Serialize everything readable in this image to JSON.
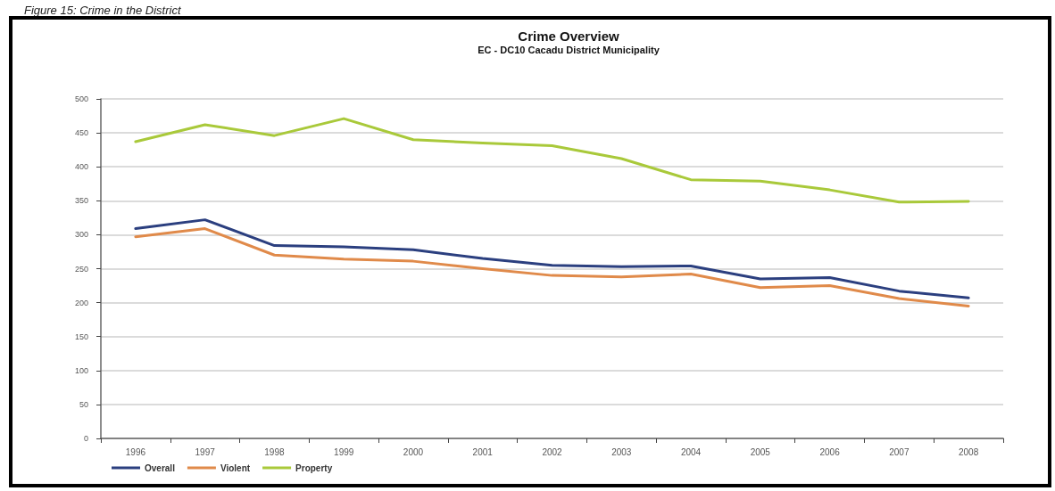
{
  "chart_data": {
    "type": "line",
    "title": "Crime Overview",
    "subtitle": "EC - DC10 Cacadu District Municipality",
    "annotations": [
      "Figure 15: Crime in the District"
    ],
    "categories": [
      "1996",
      "1997",
      "1998",
      "1999",
      "2000",
      "2001",
      "2002",
      "2003",
      "2004",
      "2005",
      "2006",
      "2007",
      "2008"
    ],
    "series": [
      {
        "name": "Overall",
        "color": "#2b3f7f",
        "values": [
          309,
          322,
          284,
          282,
          278,
          265,
          255,
          253,
          254,
          235,
          237,
          217,
          207
        ]
      },
      {
        "name": "Violent",
        "color": "#e08a4a",
        "values": [
          297,
          309,
          270,
          264,
          261,
          250,
          240,
          238,
          242,
          222,
          225,
          206,
          195
        ]
      },
      {
        "name": "Property",
        "color": "#a9c93a",
        "values": [
          437,
          462,
          446,
          471,
          440,
          435,
          431,
          412,
          381,
          379,
          366,
          348,
          349
        ]
      }
    ],
    "ylim": [
      0,
      500
    ],
    "yticks": [
      0,
      50,
      100,
      150,
      200,
      250,
      300,
      350,
      400,
      450,
      500
    ],
    "grid": "y",
    "legend": "bottom left",
    "marker": "none",
    "line_style": "solid"
  }
}
